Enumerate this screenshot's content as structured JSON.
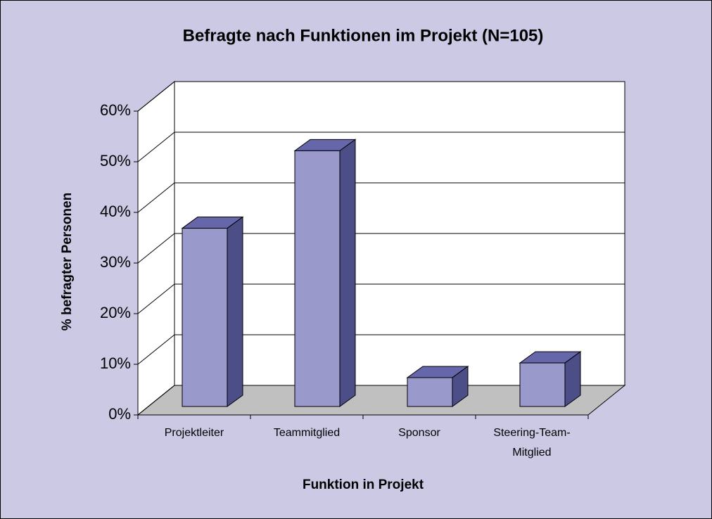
{
  "chart_data": {
    "type": "bar3d",
    "title": "Befragte nach Funktionen im Projekt (N=105)",
    "x_label": "Funktion in Projekt",
    "y_label": "% befragter Personen",
    "categories": [
      "Projektleiter",
      "Teammitglied",
      "Sponsor",
      "Steering-Team-Mitglied"
    ],
    "values": [
      35.2,
      50.5,
      5.7,
      8.6
    ],
    "color": "#9999cc",
    "ylim": [
      0,
      60
    ],
    "yticks": [
      {
        "value": 0,
        "label": "0%"
      },
      {
        "value": 10,
        "label": "10%"
      },
      {
        "value": 20,
        "label": "20%"
      },
      {
        "value": 30,
        "label": "30%"
      },
      {
        "value": 40,
        "label": "40%"
      },
      {
        "value": 50,
        "label": "50%"
      },
      {
        "value": 60,
        "label": "60%"
      }
    ],
    "grid": true
  }
}
